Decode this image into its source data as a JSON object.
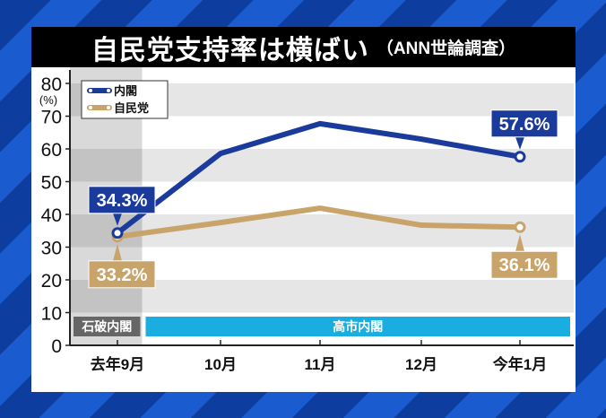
{
  "title": "自民党支持率は横ばい",
  "subtitle": "（ANN世論調査）",
  "chart_data": {
    "type": "line",
    "title": "自民党支持率は横ばい",
    "subtitle": "（ANN世論調査）",
    "ylabel": "(%)",
    "ylim": [
      0,
      80
    ],
    "yticks": [
      0,
      10,
      20,
      30,
      40,
      50,
      60,
      70,
      80
    ],
    "categories": [
      "去年9月",
      "10月",
      "11月",
      "12月",
      "今年1月"
    ],
    "legend_position": "top-left",
    "grid": "alternating horizontal bands",
    "series": [
      {
        "name": "内閣",
        "color": "#1a3a9c",
        "values": [
          34.3,
          58.6,
          67.7,
          63.0,
          57.6
        ],
        "labels": {
          "0": "34.3%",
          "4": "57.6%"
        }
      },
      {
        "name": "自民党",
        "color": "#c9a46a",
        "values": [
          33.2,
          37.5,
          41.9,
          36.7,
          36.1
        ],
        "labels": {
          "0": "33.2%",
          "4": "36.1%"
        }
      }
    ],
    "periods": [
      {
        "label": "石破内閣",
        "from": "去年9月",
        "to": "去年9月",
        "color": "#666666"
      },
      {
        "label": "高市内閣",
        "from": "10月",
        "to": "今年1月",
        "color": "#1aaee0"
      }
    ]
  }
}
